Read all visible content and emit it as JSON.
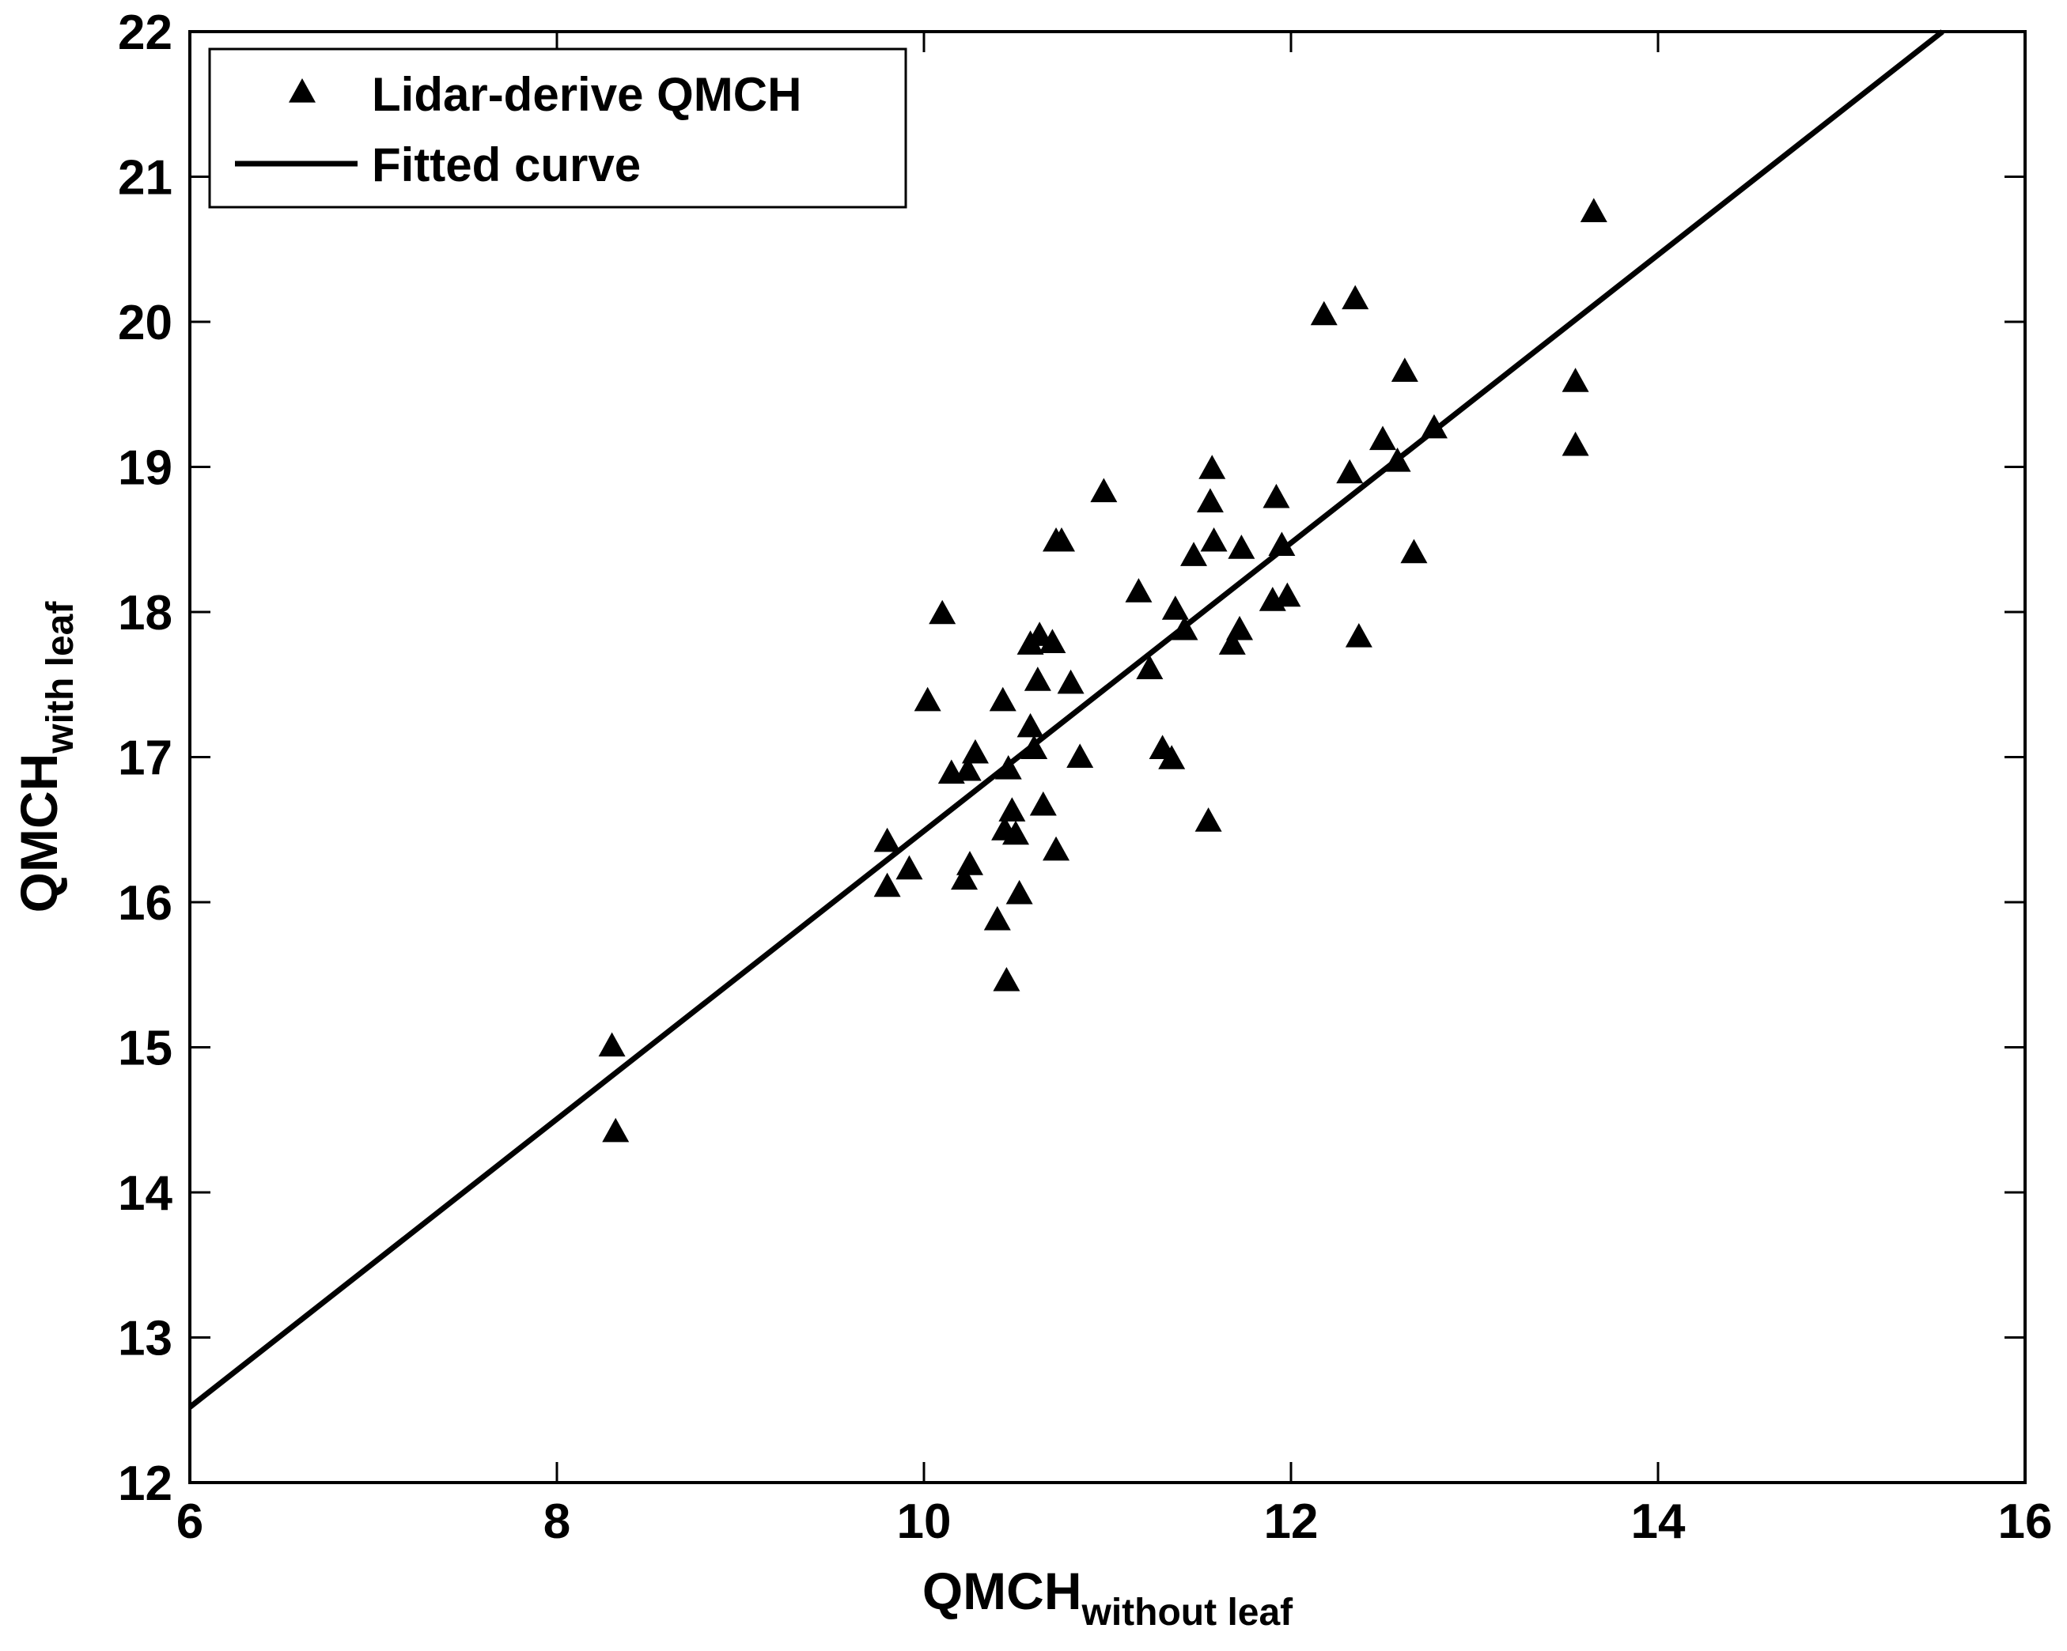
{
  "chart_data": {
    "type": "scatter",
    "title": "",
    "xlabel": "QMCH",
    "xlabel_subscript": "without leaf",
    "ylabel": "QMCH",
    "ylabel_subscript": "with leaf",
    "xlim": [
      6,
      16
    ],
    "ylim": [
      12,
      22
    ],
    "xticks": [
      "6",
      "8",
      "10",
      "12",
      "14",
      "16"
    ],
    "yticks": [
      "12",
      "13",
      "14",
      "15",
      "16",
      "17",
      "18",
      "19",
      "20",
      "21",
      "22"
    ],
    "grid": false,
    "legend_position": "top-left",
    "series": [
      {
        "name": "Lidar-derive QMCH",
        "marker": "triangle",
        "color": "#000000",
        "points": [
          [
            8.3,
            15.0
          ],
          [
            8.32,
            14.41
          ],
          [
            9.8,
            16.41
          ],
          [
            9.8,
            16.1
          ],
          [
            9.92,
            16.22
          ],
          [
            10.02,
            17.38
          ],
          [
            10.1,
            17.98
          ],
          [
            10.15,
            16.88
          ],
          [
            10.22,
            16.15
          ],
          [
            10.24,
            16.9
          ],
          [
            10.25,
            16.25
          ],
          [
            10.28,
            17.02
          ],
          [
            10.4,
            15.87
          ],
          [
            10.43,
            17.38
          ],
          [
            10.44,
            16.49
          ],
          [
            10.45,
            15.45
          ],
          [
            10.46,
            16.91
          ],
          [
            10.48,
            16.62
          ],
          [
            10.5,
            16.46
          ],
          [
            10.52,
            16.05
          ],
          [
            10.58,
            17.2
          ],
          [
            10.58,
            17.77
          ],
          [
            10.6,
            17.05
          ],
          [
            10.62,
            17.52
          ],
          [
            10.63,
            17.83
          ],
          [
            10.65,
            16.66
          ],
          [
            10.7,
            17.78
          ],
          [
            10.72,
            16.35
          ],
          [
            10.72,
            18.48
          ],
          [
            10.75,
            18.48
          ],
          [
            10.8,
            17.5
          ],
          [
            10.85,
            16.99
          ],
          [
            10.98,
            18.82
          ],
          [
            11.17,
            18.13
          ],
          [
            11.23,
            17.6
          ],
          [
            11.3,
            17.05
          ],
          [
            11.35,
            16.98
          ],
          [
            11.37,
            18.01
          ],
          [
            11.42,
            17.87
          ],
          [
            11.47,
            18.38
          ],
          [
            11.55,
            16.55
          ],
          [
            11.56,
            18.75
          ],
          [
            11.57,
            18.98
          ],
          [
            11.58,
            18.48
          ],
          [
            11.68,
            17.77
          ],
          [
            11.72,
            17.87
          ],
          [
            11.73,
            18.43
          ],
          [
            11.9,
            18.07
          ],
          [
            11.92,
            18.78
          ],
          [
            11.95,
            18.45
          ],
          [
            11.98,
            18.1
          ],
          [
            12.18,
            20.04
          ],
          [
            12.32,
            18.95
          ],
          [
            12.35,
            20.15
          ],
          [
            12.37,
            17.82
          ],
          [
            12.5,
            19.18
          ],
          [
            12.58,
            19.03
          ],
          [
            12.62,
            19.65
          ],
          [
            12.67,
            18.4
          ],
          [
            12.78,
            19.26
          ],
          [
            13.55,
            19.58
          ],
          [
            13.55,
            19.14
          ],
          [
            13.65,
            20.75
          ]
        ]
      },
      {
        "name": "Fitted curve",
        "type": "line",
        "color": "#000000",
        "x": [
          6,
          15.55
        ],
        "y": [
          12.52,
          22.0
        ]
      }
    ]
  }
}
